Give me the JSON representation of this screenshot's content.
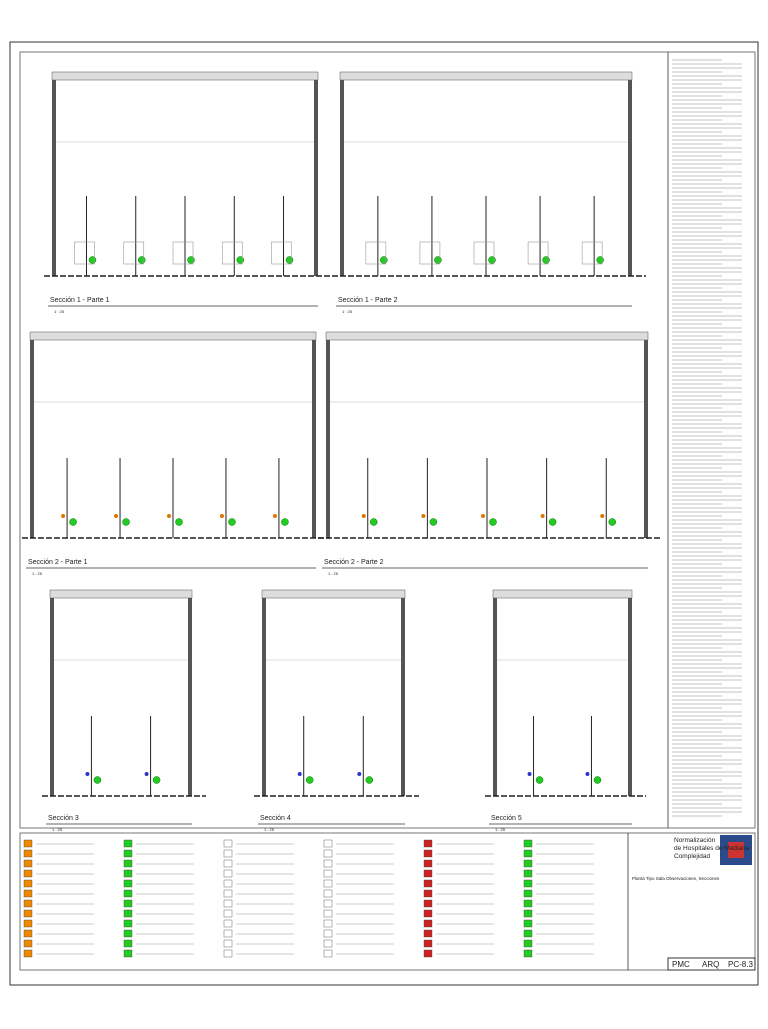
{
  "sections": [
    {
      "title": "Sección 1 - Parte 1",
      "scale": "1 : 25"
    },
    {
      "title": "Sección 1 - Parte 2",
      "scale": "1 : 25"
    },
    {
      "title": "Sección 2 - Parte 1",
      "scale": "1 : 25"
    },
    {
      "title": "Sección 2 - Parte 2",
      "scale": "1 : 25"
    },
    {
      "title": "Sección 3",
      "scale": "1 : 25"
    },
    {
      "title": "Sección 4",
      "scale": "1 : 25"
    },
    {
      "title": "Sección 5",
      "scale": "1 : 25"
    }
  ],
  "title_block": {
    "project": "Normalización de Hospitales de Mediana Complejidad",
    "sheet_name": "Planta Tipo Sala Observaciones, Secciones",
    "codes": [
      "PMC",
      "ARQ",
      "PC-8.3"
    ]
  }
}
